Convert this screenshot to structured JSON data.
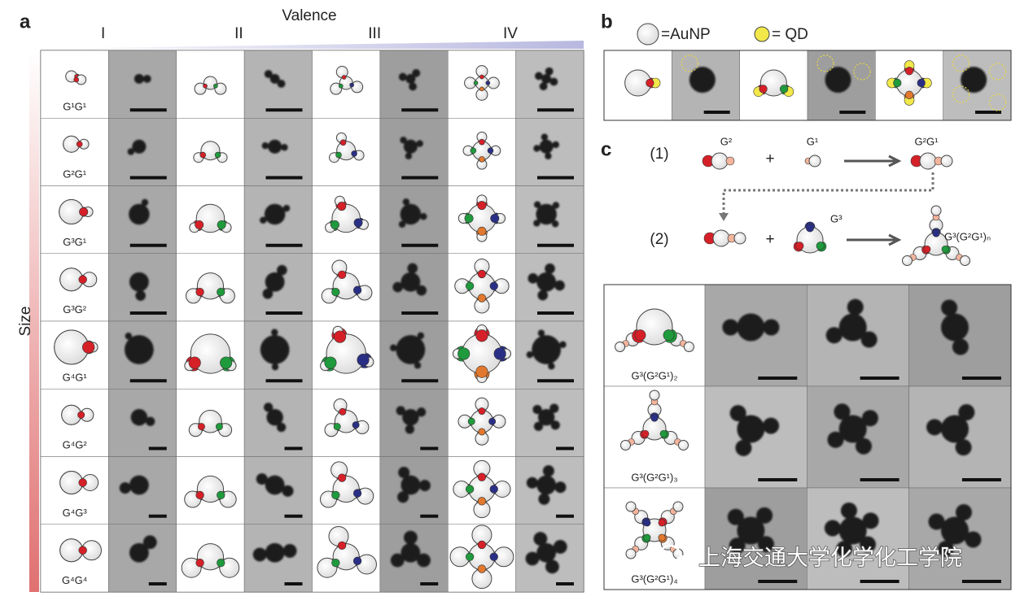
{
  "panel_a": {
    "label": "a",
    "axis_x": "Valence",
    "valence_labels": [
      "I",
      "II",
      "III",
      "IV"
    ],
    "axis_y": "Size",
    "rows": [
      "G¹G¹",
      "G²G¹",
      "G³G¹",
      "G³G²",
      "G⁴G¹",
      "G⁴G²",
      "G⁴G³",
      "G⁴G⁴"
    ]
  },
  "panel_b": {
    "label": "b",
    "legend": [
      "=AuNP",
      "= QD"
    ]
  },
  "panel_c": {
    "label": "c",
    "steps": [
      "(1)",
      "(2)"
    ],
    "step1": {
      "a": "G²",
      "plus": "+",
      "b": "G¹",
      "product": "G²G¹"
    },
    "step2": {
      "plus": "+",
      "b": "G³",
      "product": "G³(G²G¹)ₙ"
    },
    "rows": [
      "G³(G²G¹)₂",
      "G³(G²G¹)₃",
      "G³(G²G¹)₄"
    ]
  },
  "watermark": "上海交通大学化学化工学院"
}
